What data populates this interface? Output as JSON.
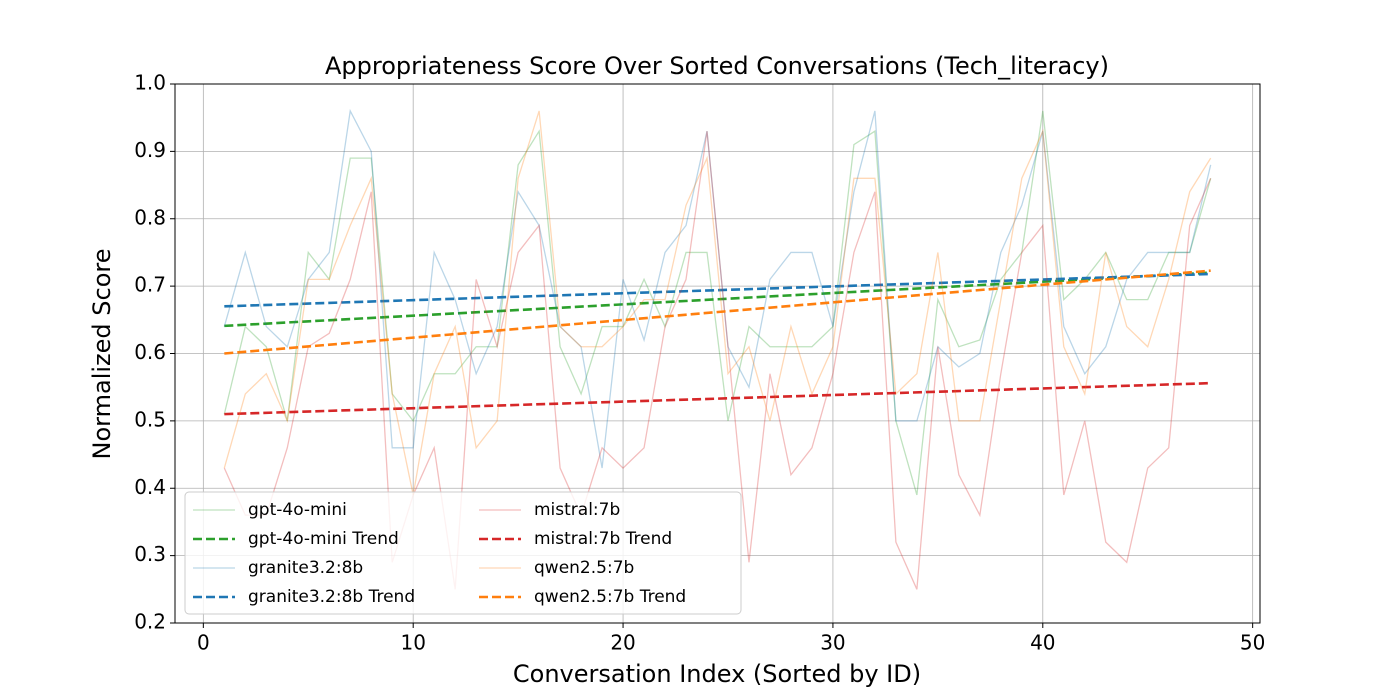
{
  "chart_data": {
    "type": "line",
    "title": "Appropriateness Score Over Sorted Conversations (Tech_literacy)",
    "xlabel": "Conversation Index (Sorted by ID)",
    "ylabel": "Normalized Score",
    "xlim": [
      -1.35,
      50.35
    ],
    "ylim": [
      0.2,
      1.0
    ],
    "xticks": [
      0,
      10,
      20,
      30,
      40,
      50
    ],
    "yticks": [
      0.2,
      0.3,
      0.4,
      0.5,
      0.6,
      0.7,
      0.8,
      0.9,
      {
        "value": 1,
        "label": "1.0"
      }
    ],
    "grid": true,
    "legend": "lower left",
    "legend_columns": 2,
    "series": [
      {
        "name": "gpt-4o-mini",
        "color": "#2ca02c",
        "linestyle": "solid",
        "alpha": 0.3,
        "x": [
          1,
          2,
          3,
          4,
          5,
          6,
          7,
          8,
          9,
          10,
          11,
          12,
          13,
          14,
          15,
          16,
          17,
          18,
          19,
          20,
          21,
          22,
          23,
          24,
          25,
          26,
          27,
          28,
          29,
          30,
          31,
          32,
          33,
          34,
          35,
          36,
          37,
          38,
          39,
          40,
          41,
          42,
          43,
          44,
          45,
          46,
          47,
          48
        ],
        "values": [
          0.51,
          0.64,
          0.61,
          0.5,
          0.75,
          0.71,
          0.89,
          0.89,
          0.54,
          0.5,
          0.57,
          0.57,
          0.61,
          0.61,
          0.88,
          0.93,
          0.61,
          0.54,
          0.64,
          0.64,
          0.71,
          0.64,
          0.75,
          0.75,
          0.5,
          0.64,
          0.61,
          0.61,
          0.61,
          0.64,
          0.91,
          0.93,
          0.5,
          0.39,
          0.68,
          0.61,
          0.62,
          0.71,
          0.75,
          0.96,
          0.68,
          0.71,
          0.75,
          0.68,
          0.68,
          0.75,
          0.75,
          0.86
        ]
      },
      {
        "name": "gpt-4o-mini Trend",
        "color": "#2ca02c",
        "linestyle": "dashed",
        "alpha": 1,
        "x": [
          1,
          48
        ],
        "values": [
          0.641,
          0.72
        ]
      },
      {
        "name": "granite3.2:8b",
        "color": "#1f77b4",
        "linestyle": "solid",
        "alpha": 0.3,
        "x": [
          1,
          2,
          3,
          4,
          5,
          6,
          7,
          8,
          9,
          10,
          11,
          12,
          13,
          14,
          15,
          16,
          17,
          18,
          19,
          20,
          21,
          22,
          23,
          24,
          25,
          26,
          27,
          28,
          29,
          30,
          31,
          32,
          33,
          34,
          35,
          36,
          37,
          38,
          39,
          40,
          41,
          42,
          43,
          44,
          45,
          46,
          47,
          48
        ],
        "values": [
          0.64,
          0.75,
          0.64,
          0.61,
          0.71,
          0.75,
          0.96,
          0.9,
          0.46,
          0.46,
          0.75,
          0.68,
          0.57,
          0.64,
          0.84,
          0.79,
          0.64,
          0.61,
          0.43,
          0.71,
          0.62,
          0.75,
          0.79,
          0.93,
          0.61,
          0.55,
          0.71,
          0.75,
          0.75,
          0.64,
          0.84,
          0.96,
          0.5,
          0.5,
          0.61,
          0.58,
          0.6,
          0.75,
          0.82,
          0.93,
          0.64,
          0.57,
          0.61,
          0.71,
          0.75,
          0.75,
          0.75,
          0.88
        ]
      },
      {
        "name": "granite3.2:8b Trend",
        "color": "#1f77b4",
        "linestyle": "dashed",
        "alpha": 1,
        "x": [
          1,
          48
        ],
        "values": [
          0.67,
          0.718
        ]
      },
      {
        "name": "mistral:7b",
        "color": "#d62728",
        "linestyle": "solid",
        "alpha": 0.3,
        "x": [
          1,
          2,
          3,
          4,
          5,
          6,
          7,
          8,
          9,
          10,
          11,
          12,
          13,
          14,
          15,
          16,
          17,
          18,
          19,
          20,
          21,
          22,
          23,
          24,
          25,
          26,
          27,
          28,
          29,
          30,
          31,
          32,
          33,
          34,
          35,
          36,
          37,
          38,
          39,
          40,
          41,
          42,
          43,
          44,
          45,
          46,
          47,
          48
        ],
        "values": [
          0.43,
          0.36,
          0.36,
          0.46,
          0.61,
          0.63,
          0.71,
          0.84,
          0.29,
          0.39,
          0.46,
          0.25,
          0.71,
          0.61,
          0.75,
          0.79,
          0.43,
          0.36,
          0.46,
          0.43,
          0.46,
          0.64,
          0.71,
          0.93,
          0.61,
          0.29,
          0.57,
          0.42,
          0.46,
          0.57,
          0.75,
          0.84,
          0.32,
          0.25,
          0.61,
          0.42,
          0.36,
          0.57,
          0.75,
          0.79,
          0.39,
          0.5,
          0.32,
          0.29,
          0.43,
          0.46,
          0.79,
          0.86
        ]
      },
      {
        "name": "mistral:7b Trend",
        "color": "#d62728",
        "linestyle": "dashed",
        "alpha": 1,
        "x": [
          1,
          48
        ],
        "values": [
          0.51,
          0.556
        ]
      },
      {
        "name": "qwen2.5:7b",
        "color": "#ff7f0e",
        "linestyle": "solid",
        "alpha": 0.3,
        "x": [
          1,
          2,
          3,
          4,
          5,
          6,
          7,
          8,
          9,
          10,
          11,
          12,
          13,
          14,
          15,
          16,
          17,
          18,
          19,
          20,
          21,
          22,
          23,
          24,
          25,
          26,
          27,
          28,
          29,
          30,
          31,
          32,
          33,
          34,
          35,
          36,
          37,
          38,
          39,
          40,
          41,
          42,
          43,
          44,
          45,
          46,
          47,
          48
        ],
        "values": [
          0.43,
          0.54,
          0.57,
          0.5,
          0.71,
          0.71,
          0.79,
          0.86,
          0.54,
          0.39,
          0.57,
          0.64,
          0.46,
          0.5,
          0.86,
          0.96,
          0.64,
          0.61,
          0.61,
          0.64,
          0.68,
          0.68,
          0.82,
          0.89,
          0.57,
          0.61,
          0.5,
          0.64,
          0.54,
          0.61,
          0.86,
          0.86,
          0.54,
          0.57,
          0.75,
          0.5,
          0.5,
          0.68,
          0.86,
          0.93,
          0.61,
          0.54,
          0.75,
          0.64,
          0.61,
          0.71,
          0.84,
          0.89
        ]
      },
      {
        "name": "qwen2.5:7b Trend",
        "color": "#ff7f0e",
        "linestyle": "dashed",
        "alpha": 1,
        "x": [
          1,
          48
        ],
        "values": [
          0.6,
          0.723
        ]
      }
    ]
  }
}
